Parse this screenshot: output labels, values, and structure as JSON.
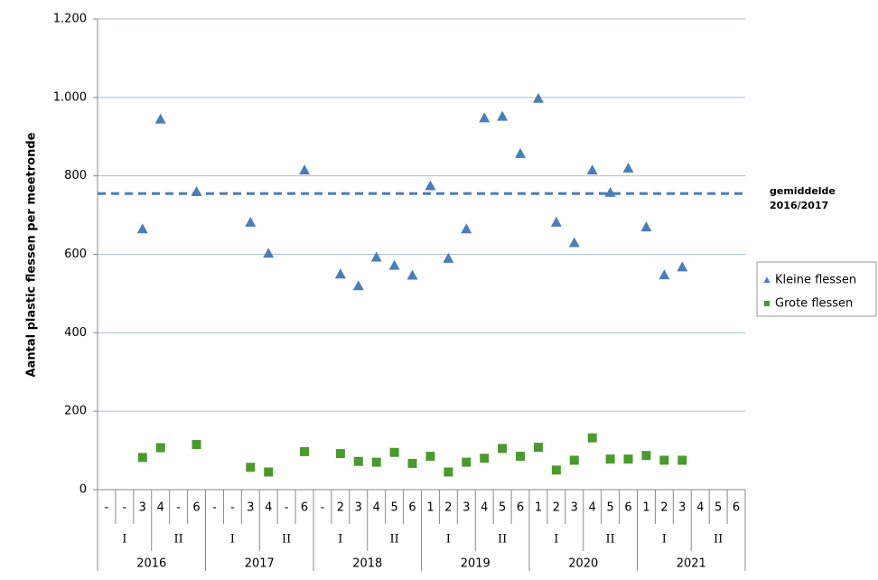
{
  "chart_data": {
    "type": "scatter",
    "y_label": "Aantal plastic flessen per meetronde",
    "categories": [
      "-",
      "-",
      "3",
      "4",
      "-",
      "6",
      "-",
      "-",
      "3",
      "4",
      "-",
      "6",
      "-",
      "2",
      "3",
      "4",
      "5",
      "6",
      "1",
      "2",
      "3",
      "4",
      "5",
      "6",
      "1",
      "2",
      "3",
      "4",
      "5",
      "6",
      "1",
      "2",
      "3",
      "4",
      "5",
      "6"
    ],
    "halves": [
      "I",
      "II",
      "I",
      "II",
      "I",
      "II",
      "I",
      "II",
      "I",
      "II",
      "I",
      "II"
    ],
    "years": [
      "2016",
      "2017",
      "2018",
      "2019",
      "2020",
      "2021"
    ],
    "series": [
      {
        "name": "Kleine flessen",
        "color": "#4a7ebb",
        "marker": "triangle",
        "values": [
          null,
          null,
          665,
          945,
          null,
          760,
          null,
          null,
          682,
          603,
          null,
          815,
          null,
          550,
          520,
          593,
          572,
          547,
          775,
          590,
          665,
          948,
          952,
          857,
          998,
          682,
          630,
          815,
          758,
          820,
          670,
          548,
          568,
          null,
          null,
          null
        ]
      },
      {
        "name": "Grote flessen",
        "color": "#4b9a2c",
        "marker": "square",
        "values": [
          null,
          null,
          82,
          107,
          null,
          115,
          null,
          null,
          57,
          45,
          null,
          97,
          null,
          92,
          72,
          70,
          95,
          67,
          85,
          45,
          70,
          80,
          105,
          85,
          108,
          50,
          75,
          132,
          78,
          78,
          87,
          75,
          75,
          null,
          null,
          null
        ]
      }
    ],
    "reference_line": {
      "value": 755,
      "label": [
        "gemiddelde",
        "2016/2017"
      ],
      "color": "#4a7ebb"
    },
    "ylim": [
      0,
      1200
    ],
    "yticks": [
      0,
      200,
      400,
      600,
      800,
      {
        "value": 1000,
        "label": "1.000"
      },
      {
        "value": 1200,
        "label": "1.200"
      }
    ],
    "grid": true,
    "legend": "right"
  }
}
